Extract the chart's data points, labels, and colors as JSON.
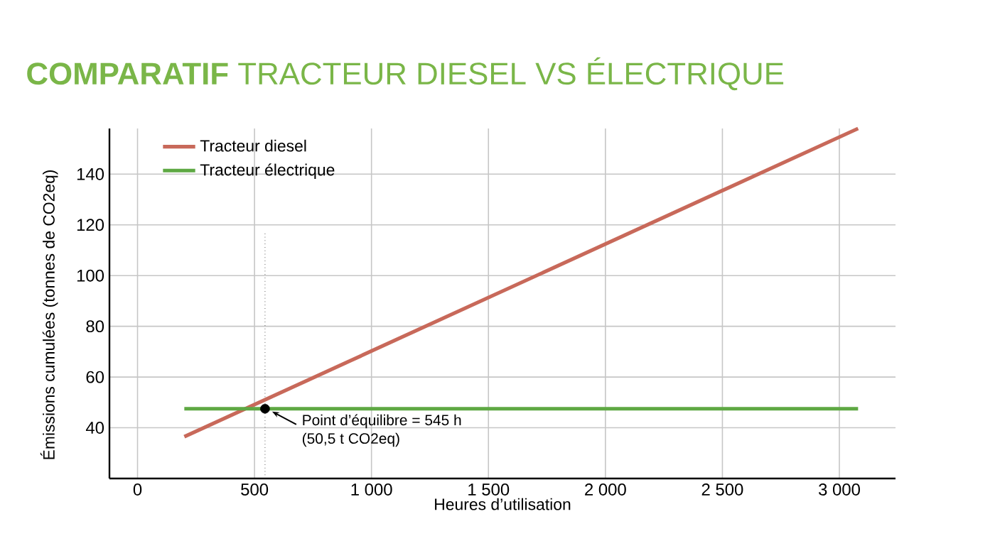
{
  "chart_data": {
    "type": "line",
    "title": "**COMPARATIF** TRACTEUR DIESEL VS ÉLECTRIQUE",
    "xlabel": "Heures d’utilisation",
    "ylabel": "Émissions cumulées (tonnes de  CO2eq)",
    "series": [
      {
        "name": "Tracteur diesel",
        "color": "#c8695a",
        "x": [
          200,
          3080
        ],
        "values": [
          36.5,
          158
        ]
      },
      {
        "name": "Tracteur électrique",
        "color": "#5ea843",
        "x": [
          200,
          3080
        ],
        "values": [
          47.5,
          47.5
        ]
      },
      {
        "type": "scatter",
        "color": "#000000",
        "x": [
          545
        ],
        "values": [
          47.5
        ],
        "marker": "circle"
      }
    ],
    "xlim": [
      -120,
      3240
    ],
    "ylim": [
      20,
      158
    ],
    "xticks": [
      0,
      500,
      {
        "value": 1000,
        "label": "1 000"
      },
      {
        "value": 1500,
        "label": "1 500"
      },
      {
        "value": 2000,
        "label": "2 000"
      },
      {
        "value": 2500,
        "label": "2 500"
      },
      {
        "value": 3000,
        "label": "3 000"
      }
    ],
    "yticks": [
      40,
      60,
      80,
      100,
      120,
      140
    ],
    "ref_lines": [
      {
        "axis": "x",
        "value": 545,
        "line_style": "dotted",
        "color": "#000000"
      }
    ],
    "annotations": [
      {
        "text": "Point d’équilibre = 545 h",
        "x": 545,
        "y": 47.5
      },
      "(50,5 t  CO2eq)"
    ],
    "grid": true,
    "legend": "top left",
    "line_style": "solid"
  }
}
